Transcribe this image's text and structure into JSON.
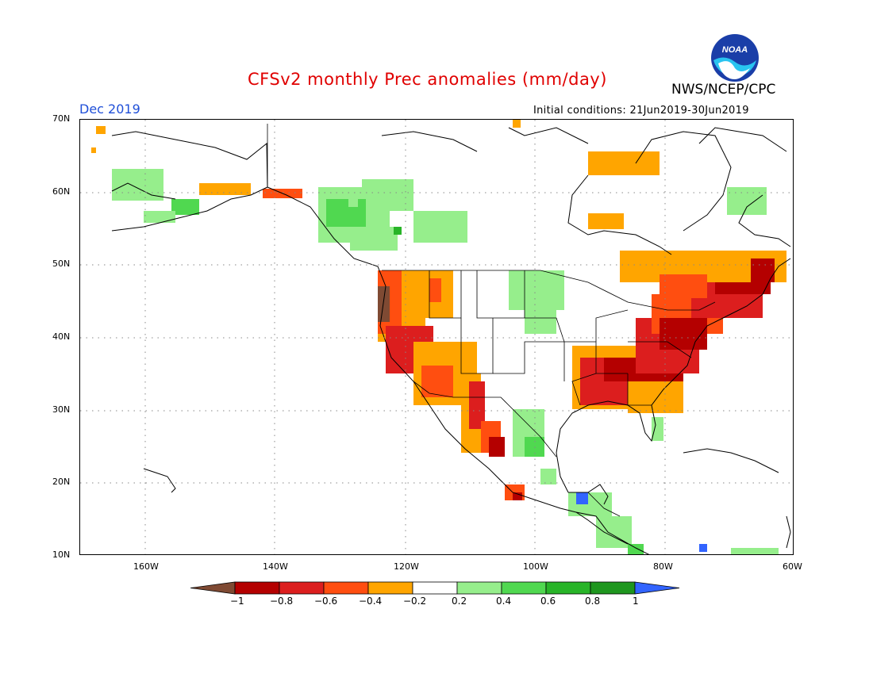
{
  "title": "CFSv2 monthly Prec anomalies (mm/day)",
  "organization": "NWS/NCEP/CPC",
  "logo_text": "NOAA",
  "period": "Dec 2019",
  "initial_conditions": "Initial conditions: 21Jun2019-30Jun2019",
  "lat_labels": [
    "70N",
    "60N",
    "50N",
    "40N",
    "30N",
    "20N",
    "10N"
  ],
  "lon_labels": [
    "160W",
    "140W",
    "120W",
    "100W",
    "80W",
    "60W"
  ],
  "legend": {
    "labels": [
      "-1",
      "-0.8",
      "-0.6",
      "-0.4",
      "-0.2",
      "0.2",
      "0.4",
      "0.6",
      "0.8",
      "1"
    ],
    "colors": [
      "#7f4a33",
      "#b40000",
      "#dc1e1e",
      "#ff4e10",
      "#ffa500",
      "#ffffff",
      "#96ee8c",
      "#50d850",
      "#28b428",
      "#1e961e",
      "#3264ff"
    ]
  },
  "map_extent": {
    "lon": [
      -170,
      -60
    ],
    "lat": [
      10,
      70
    ]
  }
}
